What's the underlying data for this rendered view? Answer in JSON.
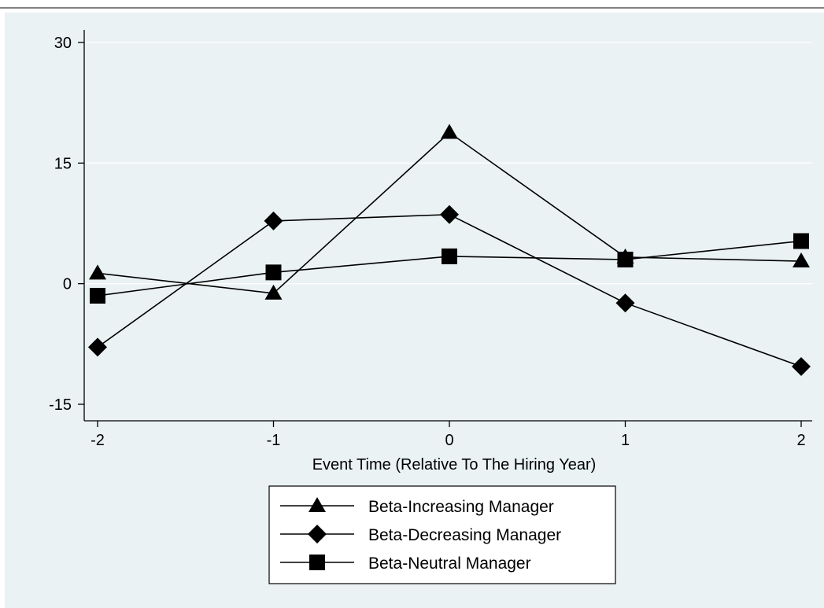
{
  "chart_data": {
    "type": "line",
    "title": "",
    "xlabel": "Event Time (Relative To The Hiring Year)",
    "ylabel": "",
    "x": [
      -2,
      -1,
      0,
      1,
      2
    ],
    "x_tick_labels": [
      "-2",
      "-1",
      "0",
      "1",
      "2"
    ],
    "y_ticks": [
      30,
      15,
      0,
      -15
    ],
    "y_tick_labels": [
      "30",
      "15",
      "0",
      "-15"
    ],
    "xlim": [
      -2,
      2
    ],
    "ylim": [
      -15,
      30
    ],
    "grid": true,
    "legend_position": "bottom",
    "series": [
      {
        "name": "Beta-Increasing Manager",
        "marker": "triangle",
        "values": [
          1.3,
          -1.2,
          18.8,
          3.3,
          2.8
        ]
      },
      {
        "name": "Beta-Decreasing Manager",
        "marker": "diamond",
        "values": [
          -7.9,
          7.8,
          8.6,
          -2.4,
          -10.3
        ]
      },
      {
        "name": "Beta-Neutral Manager",
        "marker": "square",
        "values": [
          -1.5,
          1.4,
          3.4,
          3.0,
          5.3
        ]
      }
    ],
    "colors": {
      "plot_background": "#eaf2f3",
      "line": "#000000",
      "grid": "#ffffff"
    }
  }
}
